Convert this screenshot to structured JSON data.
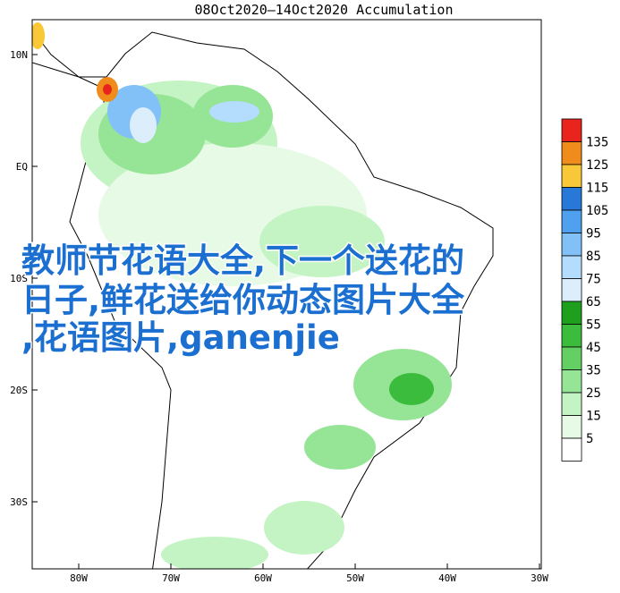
{
  "header": {
    "title": "08Oct2020—14Oct2020 Accumulation"
  },
  "latitude_labels": [
    "10N",
    "EQ",
    "10S",
    "20S",
    "30S"
  ],
  "longitude_labels": [
    "80W",
    "70W",
    "60W",
    "50W",
    "40W",
    "30W"
  ],
  "legend": {
    "levels": [
      135,
      125,
      115,
      105,
      95,
      85,
      75,
      65,
      55,
      45,
      35,
      25,
      15,
      5
    ],
    "colors": [
      "#e8241c",
      "#f08c1c",
      "#f8c838",
      "#2878d8",
      "#50a0f0",
      "#82c0f8",
      "#b4dcfc",
      "#dceefc",
      "#1ea01e",
      "#3cbc3c",
      "#64d064",
      "#96e496",
      "#c4f4c4",
      "#e6fae6",
      "#ffffff"
    ]
  },
  "overlay": {
    "lines": [
      "教师节花语大全,下一个送花的",
      "日子,鲜花送给你动态图片大全",
      ",花语图片,ganenjie"
    ]
  }
}
